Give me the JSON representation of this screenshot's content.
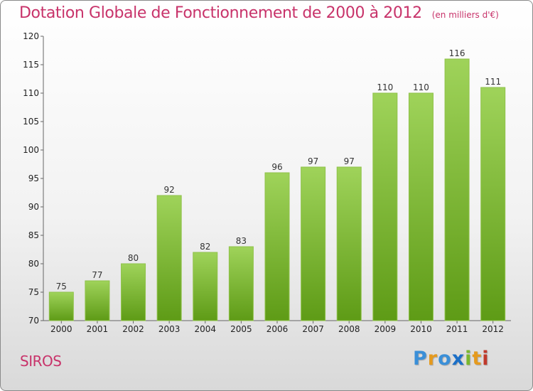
{
  "chart_data": {
    "type": "bar",
    "title": "Dotation Globale de Fonctionnement de 2000 à 2012",
    "subtitle": "(en milliers d'€)",
    "categories": [
      "2000",
      "2001",
      "2002",
      "2003",
      "2004",
      "2005",
      "2006",
      "2007",
      "2008",
      "2009",
      "2010",
      "2011",
      "2012"
    ],
    "values": [
      75,
      77,
      80,
      92,
      82,
      83,
      96,
      97,
      97,
      110,
      110,
      116,
      111
    ],
    "xlabel": "",
    "ylabel": "",
    "ylim": [
      70,
      120
    ],
    "yticks": [
      70,
      75,
      80,
      85,
      90,
      95,
      100,
      105,
      110,
      115,
      120
    ],
    "grid": false,
    "colors": {
      "bar_top": "#9fd35a",
      "bar_bottom": "#5e9b16",
      "bar_edge": "#8fc24a",
      "title": "#c8336a"
    }
  },
  "commune": "SIROS",
  "logo": {
    "text": "Proxiti"
  }
}
